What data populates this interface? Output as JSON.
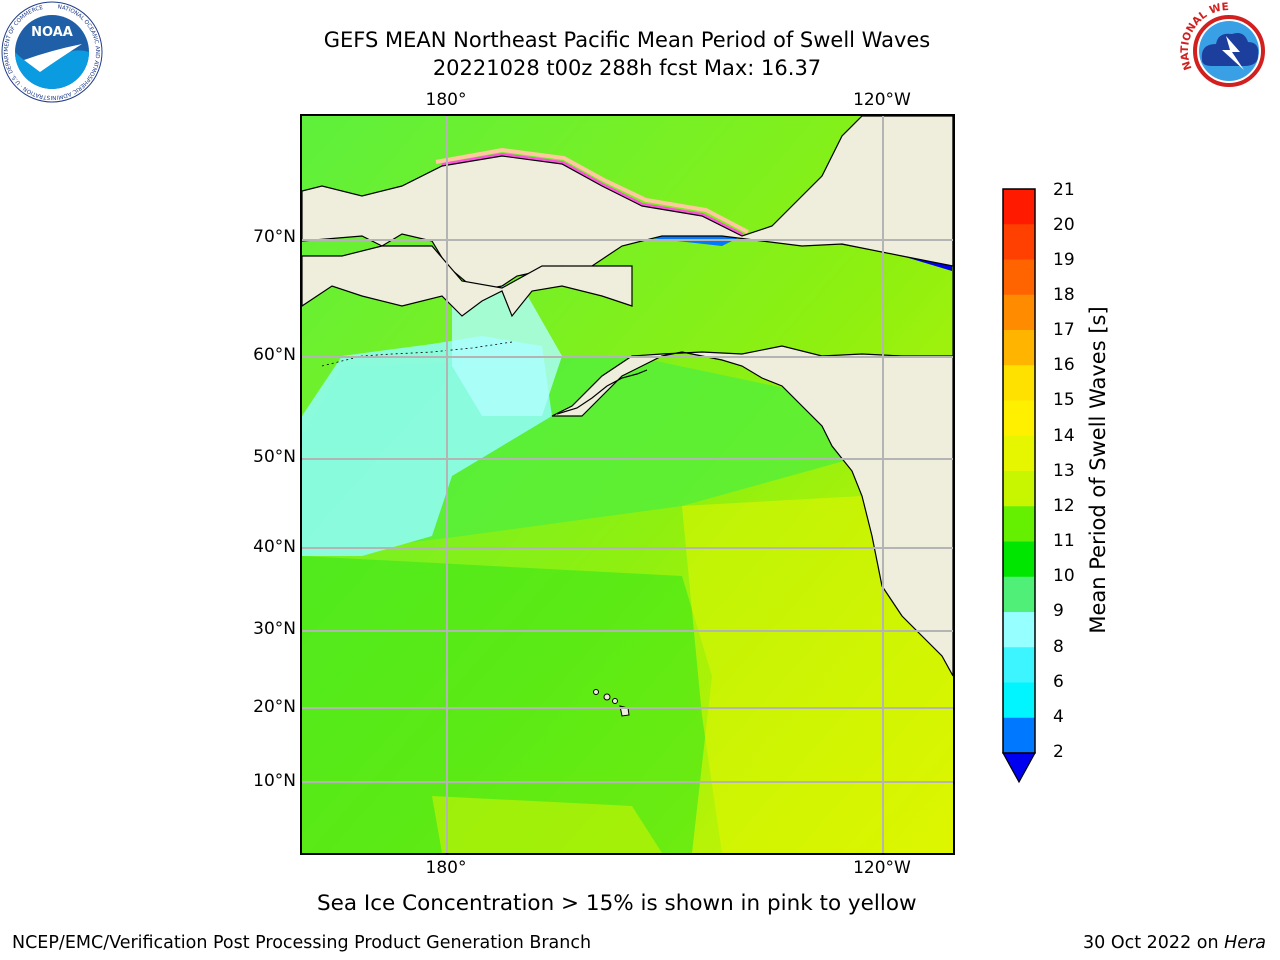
{
  "title": {
    "line1": "GEFS MEAN Northeast Pacific Mean Period of Swell Waves",
    "line2": "20221028 t00z 288h fcst   Max: 16.37"
  },
  "logos": {
    "noaa": {
      "center_text": "NOAA",
      "ring_text": "NATIONAL OCEANIC AND ATMOSPHERIC ADMINISTRATION · U.S. DEPARTMENT OF COMMERCE"
    },
    "nws": {
      "ring_text": "NATIONAL WEATHER SERVICE"
    }
  },
  "map": {
    "lon_top_labels": [
      "180°",
      "120°W"
    ],
    "lon_bottom_labels": [
      "180°",
      "120°W"
    ],
    "lat_labels": [
      "70°N",
      "60°N",
      "50°N",
      "40°N",
      "30°N",
      "20°N",
      "10°N"
    ],
    "colors": {
      "land": "#efeedc",
      "grid": "#b4b4b4",
      "coast": "#000000"
    }
  },
  "colorbar": {
    "label": "Mean Period of Swell Waves [s]",
    "ticks": [
      "21",
      "20",
      "19",
      "18",
      "17",
      "16",
      "15",
      "14",
      "13",
      "12",
      "11",
      "10",
      "9",
      "8",
      "6",
      "4",
      "2"
    ],
    "colors": [
      "#ff1a00",
      "#ff4000",
      "#ff6400",
      "#ff8c00",
      "#ffb400",
      "#ffe100",
      "#fff000",
      "#e6f500",
      "#c8f500",
      "#64f000",
      "#00e600",
      "#50f078",
      "#96ffff",
      "#3cf5ff",
      "#00f5ff",
      "#0078ff"
    ],
    "under_color": "#0000f0"
  },
  "note": "Sea Ice Concentration > 15% is shown in pink to yellow",
  "footer": {
    "left": "NCEP/EMC/Verification Post Processing Product Generation Branch",
    "date": "30 Oct 2022 on ",
    "machine": "Hera"
  }
}
